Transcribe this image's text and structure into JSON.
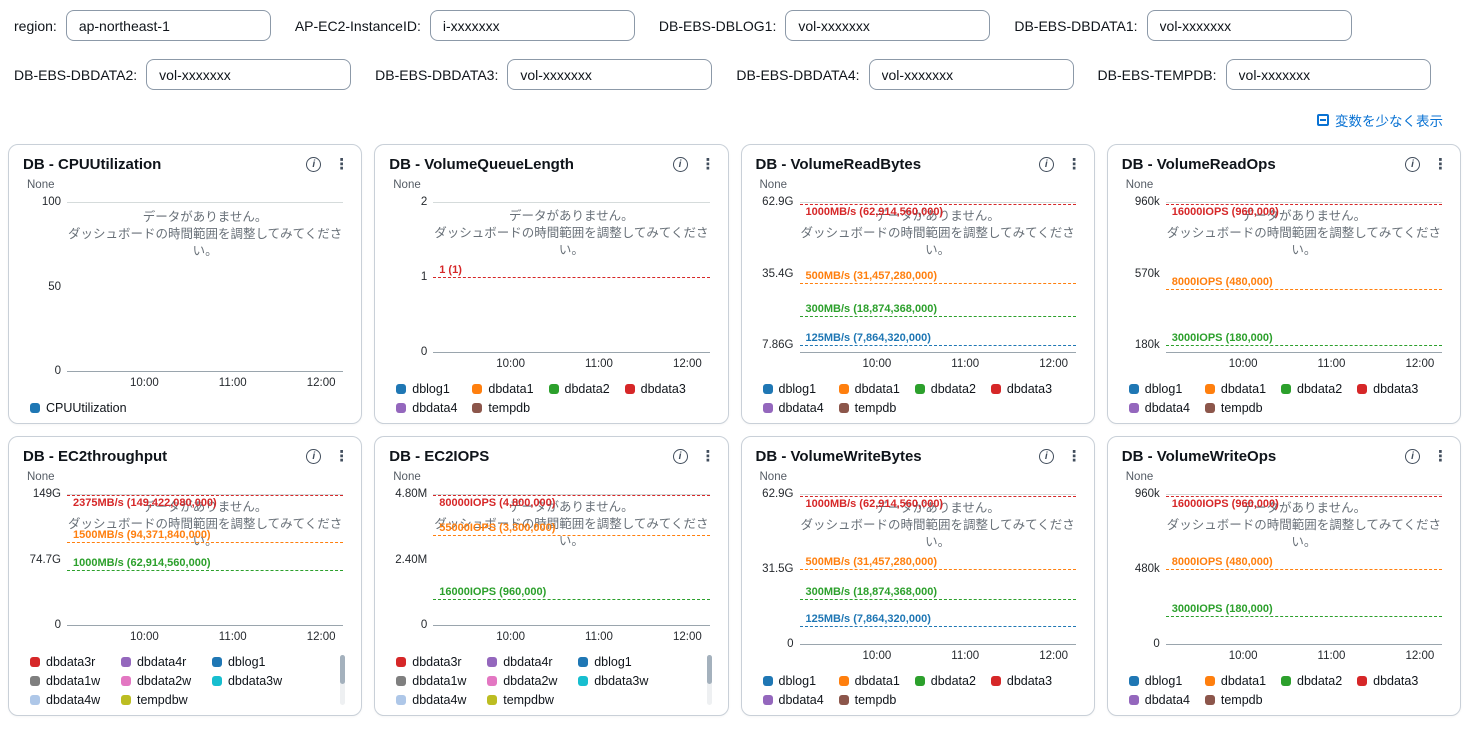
{
  "icons": {
    "info_glyph": "i",
    "menu_glyph": "⋮"
  },
  "variables": {
    "rows": [
      [
        {
          "label": "region:",
          "value": "ap-northeast-1"
        },
        {
          "label": "AP-EC2-InstanceID:",
          "value": "i-xxxxxxx"
        },
        {
          "label": "DB-EBS-DBLOG1:",
          "value": "vol-xxxxxxx"
        },
        {
          "label": "DB-EBS-DBDATA1:",
          "value": "vol-xxxxxxx"
        }
      ],
      [
        {
          "label": "DB-EBS-DBDATA2:",
          "value": "vol-xxxxxxx"
        },
        {
          "label": "DB-EBS-DBDATA3:",
          "value": "vol-xxxxxxx"
        },
        {
          "label": "DB-EBS-DBDATA4:",
          "value": "vol-xxxxxxx"
        },
        {
          "label": "DB-EBS-TEMPDB:",
          "value": "vol-xxxxxxx"
        }
      ]
    ],
    "collapse_link": "変数を少なく表示"
  },
  "no_data": {
    "line1": "データがありません。",
    "line2": "ダッシュボードの時間範囲を調整してみてください。"
  },
  "chart_data": [
    {
      "type": "line",
      "title": "DB - CPUUtilization",
      "unit": "None",
      "no_data": true,
      "xticks": [
        "10:00",
        "11:00",
        "12:00"
      ],
      "yticks": [
        {
          "label": "100",
          "pos": 0
        },
        {
          "label": "50",
          "pos": 50
        },
        {
          "label": "0",
          "pos": 100
        }
      ],
      "annotations": [],
      "legend": [
        {
          "label": "CPUUtilization",
          "color": "#1f77b4"
        }
      ],
      "legend_cols": 4,
      "legend_scrollbar": false,
      "series": []
    },
    {
      "type": "line",
      "title": "DB - VolumeQueueLength",
      "unit": "None",
      "no_data": true,
      "xticks": [
        "10:00",
        "11:00",
        "12:00"
      ],
      "yticks": [
        {
          "label": "2",
          "pos": 0
        },
        {
          "label": "1",
          "pos": 50
        },
        {
          "label": "0",
          "pos": 100
        }
      ],
      "annotations": [
        {
          "label": "1 (1)",
          "color": "#d62728",
          "pos": 50,
          "label_below": false
        }
      ],
      "legend": [
        {
          "label": "dblog1",
          "color": "#1f77b4"
        },
        {
          "label": "dbdata1",
          "color": "#ff7f0e"
        },
        {
          "label": "dbdata2",
          "color": "#2ca02c"
        },
        {
          "label": "dbdata3",
          "color": "#d62728"
        },
        {
          "label": "dbdata4",
          "color": "#9467bd"
        },
        {
          "label": "tempdb",
          "color": "#8c564b"
        }
      ],
      "legend_cols": 4,
      "legend_scrollbar": false,
      "series": []
    },
    {
      "type": "line",
      "title": "DB - VolumeReadBytes",
      "unit": "None",
      "no_data": true,
      "xticks": [
        "10:00",
        "11:00",
        "12:00"
      ],
      "yticks": [
        {
          "label": "62.9G",
          "pos": 0
        },
        {
          "label": "35.4G",
          "pos": 48
        },
        {
          "label": "7.86G",
          "pos": 95
        }
      ],
      "annotations": [
        {
          "label": "1000MB/s (62,914,560,000)",
          "color": "#d62728",
          "pos": 1,
          "label_below": true
        },
        {
          "label": "500MB/s (31,457,280,000)",
          "color": "#ff7f0e",
          "pos": 54,
          "label_below": false
        },
        {
          "label": "300MB/s (18,874,368,000)",
          "color": "#2ca02c",
          "pos": 76,
          "label_below": false
        },
        {
          "label": "125MB/s (7,864,320,000)",
          "color": "#1f77b4",
          "pos": 95,
          "label_below": false
        }
      ],
      "legend": [
        {
          "label": "dblog1",
          "color": "#1f77b4"
        },
        {
          "label": "dbdata1",
          "color": "#ff7f0e"
        },
        {
          "label": "dbdata2",
          "color": "#2ca02c"
        },
        {
          "label": "dbdata3",
          "color": "#d62728"
        },
        {
          "label": "dbdata4",
          "color": "#9467bd"
        },
        {
          "label": "tempdb",
          "color": "#8c564b"
        }
      ],
      "legend_cols": 4,
      "legend_scrollbar": false,
      "series": []
    },
    {
      "type": "line",
      "title": "DB - VolumeReadOps",
      "unit": "None",
      "no_data": true,
      "xticks": [
        "10:00",
        "11:00",
        "12:00"
      ],
      "yticks": [
        {
          "label": "960k",
          "pos": 0
        },
        {
          "label": "570k",
          "pos": 48
        },
        {
          "label": "180k",
          "pos": 95
        }
      ],
      "annotations": [
        {
          "label": "16000IOPS (960,000)",
          "color": "#d62728",
          "pos": 1,
          "label_below": true
        },
        {
          "label": "8000IOPS (480,000)",
          "color": "#ff7f0e",
          "pos": 58,
          "label_below": false
        },
        {
          "label": "3000IOPS (180,000)",
          "color": "#2ca02c",
          "pos": 95,
          "label_below": false
        }
      ],
      "legend": [
        {
          "label": "dblog1",
          "color": "#1f77b4"
        },
        {
          "label": "dbdata1",
          "color": "#ff7f0e"
        },
        {
          "label": "dbdata2",
          "color": "#2ca02c"
        },
        {
          "label": "dbdata3",
          "color": "#d62728"
        },
        {
          "label": "dbdata4",
          "color": "#9467bd"
        },
        {
          "label": "tempdb",
          "color": "#8c564b"
        }
      ],
      "legend_cols": 4,
      "legend_scrollbar": false,
      "series": []
    },
    {
      "type": "line",
      "title": "DB - EC2throughput",
      "unit": "None",
      "no_data": true,
      "xticks": [
        "10:00",
        "11:00",
        "12:00"
      ],
      "yticks": [
        {
          "label": "149G",
          "pos": 0
        },
        {
          "label": "74.7G",
          "pos": 50
        },
        {
          "label": "0",
          "pos": 100
        }
      ],
      "annotations": [
        {
          "label": "2375MB/s (149,422,080,000)",
          "color": "#d62728",
          "pos": 1,
          "label_below": true
        },
        {
          "label": "1500MB/s (94,371,840,000)",
          "color": "#ff7f0e",
          "pos": 37,
          "label_below": false
        },
        {
          "label": "1000MB/s (62,914,560,000)",
          "color": "#2ca02c",
          "pos": 58,
          "label_below": false
        }
      ],
      "legend": [
        {
          "label": "dbdata3r",
          "color": "#d62728"
        },
        {
          "label": "dbdata4r",
          "color": "#9467bd"
        },
        {
          "label": "dblog1",
          "color": "#1f77b4"
        },
        {
          "label": "dbdata1w",
          "color": "#7f7f7f"
        },
        {
          "label": "dbdata2w",
          "color": "#e377c2"
        },
        {
          "label": "dbdata3w",
          "color": "#17becf"
        },
        {
          "label": "dbdata4w",
          "color": "#aec7e8"
        },
        {
          "label": "tempdbw",
          "color": "#bcbd22"
        }
      ],
      "legend_cols": 3,
      "legend_scrollbar": true,
      "series": []
    },
    {
      "type": "line",
      "title": "DB - EC2IOPS",
      "unit": "None",
      "no_data": true,
      "xticks": [
        "10:00",
        "11:00",
        "12:00"
      ],
      "yticks": [
        {
          "label": "4.80M",
          "pos": 0
        },
        {
          "label": "2.40M",
          "pos": 50
        },
        {
          "label": "0",
          "pos": 100
        }
      ],
      "annotations": [
        {
          "label": "80000IOPS (4,800,000)",
          "color": "#d62728",
          "pos": 1,
          "label_below": true
        },
        {
          "label": "55000IOPS (3,300,000)",
          "color": "#ff7f0e",
          "pos": 31,
          "label_below": false
        },
        {
          "label": "16000IOPS (960,000)",
          "color": "#2ca02c",
          "pos": 80,
          "label_below": false
        }
      ],
      "legend": [
        {
          "label": "dbdata3r",
          "color": "#d62728"
        },
        {
          "label": "dbdata4r",
          "color": "#9467bd"
        },
        {
          "label": "dblog1",
          "color": "#1f77b4"
        },
        {
          "label": "dbdata1w",
          "color": "#7f7f7f"
        },
        {
          "label": "dbdata2w",
          "color": "#e377c2"
        },
        {
          "label": "dbdata3w",
          "color": "#17becf"
        },
        {
          "label": "dbdata4w",
          "color": "#aec7e8"
        },
        {
          "label": "tempdbw",
          "color": "#bcbd22"
        }
      ],
      "legend_cols": 3,
      "legend_scrollbar": true,
      "series": []
    },
    {
      "type": "line",
      "title": "DB - VolumeWriteBytes",
      "unit": "None",
      "no_data": true,
      "xticks": [
        "10:00",
        "11:00",
        "12:00"
      ],
      "yticks": [
        {
          "label": "62.9G",
          "pos": 0
        },
        {
          "label": "31.5G",
          "pos": 50
        },
        {
          "label": "0",
          "pos": 100
        }
      ],
      "annotations": [
        {
          "label": "1000MB/s (62,914,560,000)",
          "color": "#d62728",
          "pos": 1,
          "label_below": true
        },
        {
          "label": "500MB/s (31,457,280,000)",
          "color": "#ff7f0e",
          "pos": 50,
          "label_below": false
        },
        {
          "label": "300MB/s (18,874,368,000)",
          "color": "#2ca02c",
          "pos": 70,
          "label_below": false
        },
        {
          "label": "125MB/s (7,864,320,000)",
          "color": "#1f77b4",
          "pos": 88,
          "label_below": false
        }
      ],
      "legend": [
        {
          "label": "dblog1",
          "color": "#1f77b4"
        },
        {
          "label": "dbdata1",
          "color": "#ff7f0e"
        },
        {
          "label": "dbdata2",
          "color": "#2ca02c"
        },
        {
          "label": "dbdata3",
          "color": "#d62728"
        },
        {
          "label": "dbdata4",
          "color": "#9467bd"
        },
        {
          "label": "tempdb",
          "color": "#8c564b"
        }
      ],
      "legend_cols": 4,
      "legend_scrollbar": false,
      "series": []
    },
    {
      "type": "line",
      "title": "DB - VolumeWriteOps",
      "unit": "None",
      "no_data": true,
      "xticks": [
        "10:00",
        "11:00",
        "12:00"
      ],
      "yticks": [
        {
          "label": "960k",
          "pos": 0
        },
        {
          "label": "480k",
          "pos": 50
        },
        {
          "label": "0",
          "pos": 100
        }
      ],
      "annotations": [
        {
          "label": "16000IOPS (960,000)",
          "color": "#d62728",
          "pos": 1,
          "label_below": true
        },
        {
          "label": "8000IOPS (480,000)",
          "color": "#ff7f0e",
          "pos": 50,
          "label_below": false
        },
        {
          "label": "3000IOPS (180,000)",
          "color": "#2ca02c",
          "pos": 81,
          "label_below": false
        }
      ],
      "legend": [
        {
          "label": "dblog1",
          "color": "#1f77b4"
        },
        {
          "label": "dbdata1",
          "color": "#ff7f0e"
        },
        {
          "label": "dbdata2",
          "color": "#2ca02c"
        },
        {
          "label": "dbdata3",
          "color": "#d62728"
        },
        {
          "label": "dbdata4",
          "color": "#9467bd"
        },
        {
          "label": "tempdb",
          "color": "#8c564b"
        }
      ],
      "legend_cols": 4,
      "legend_scrollbar": false,
      "series": []
    }
  ]
}
